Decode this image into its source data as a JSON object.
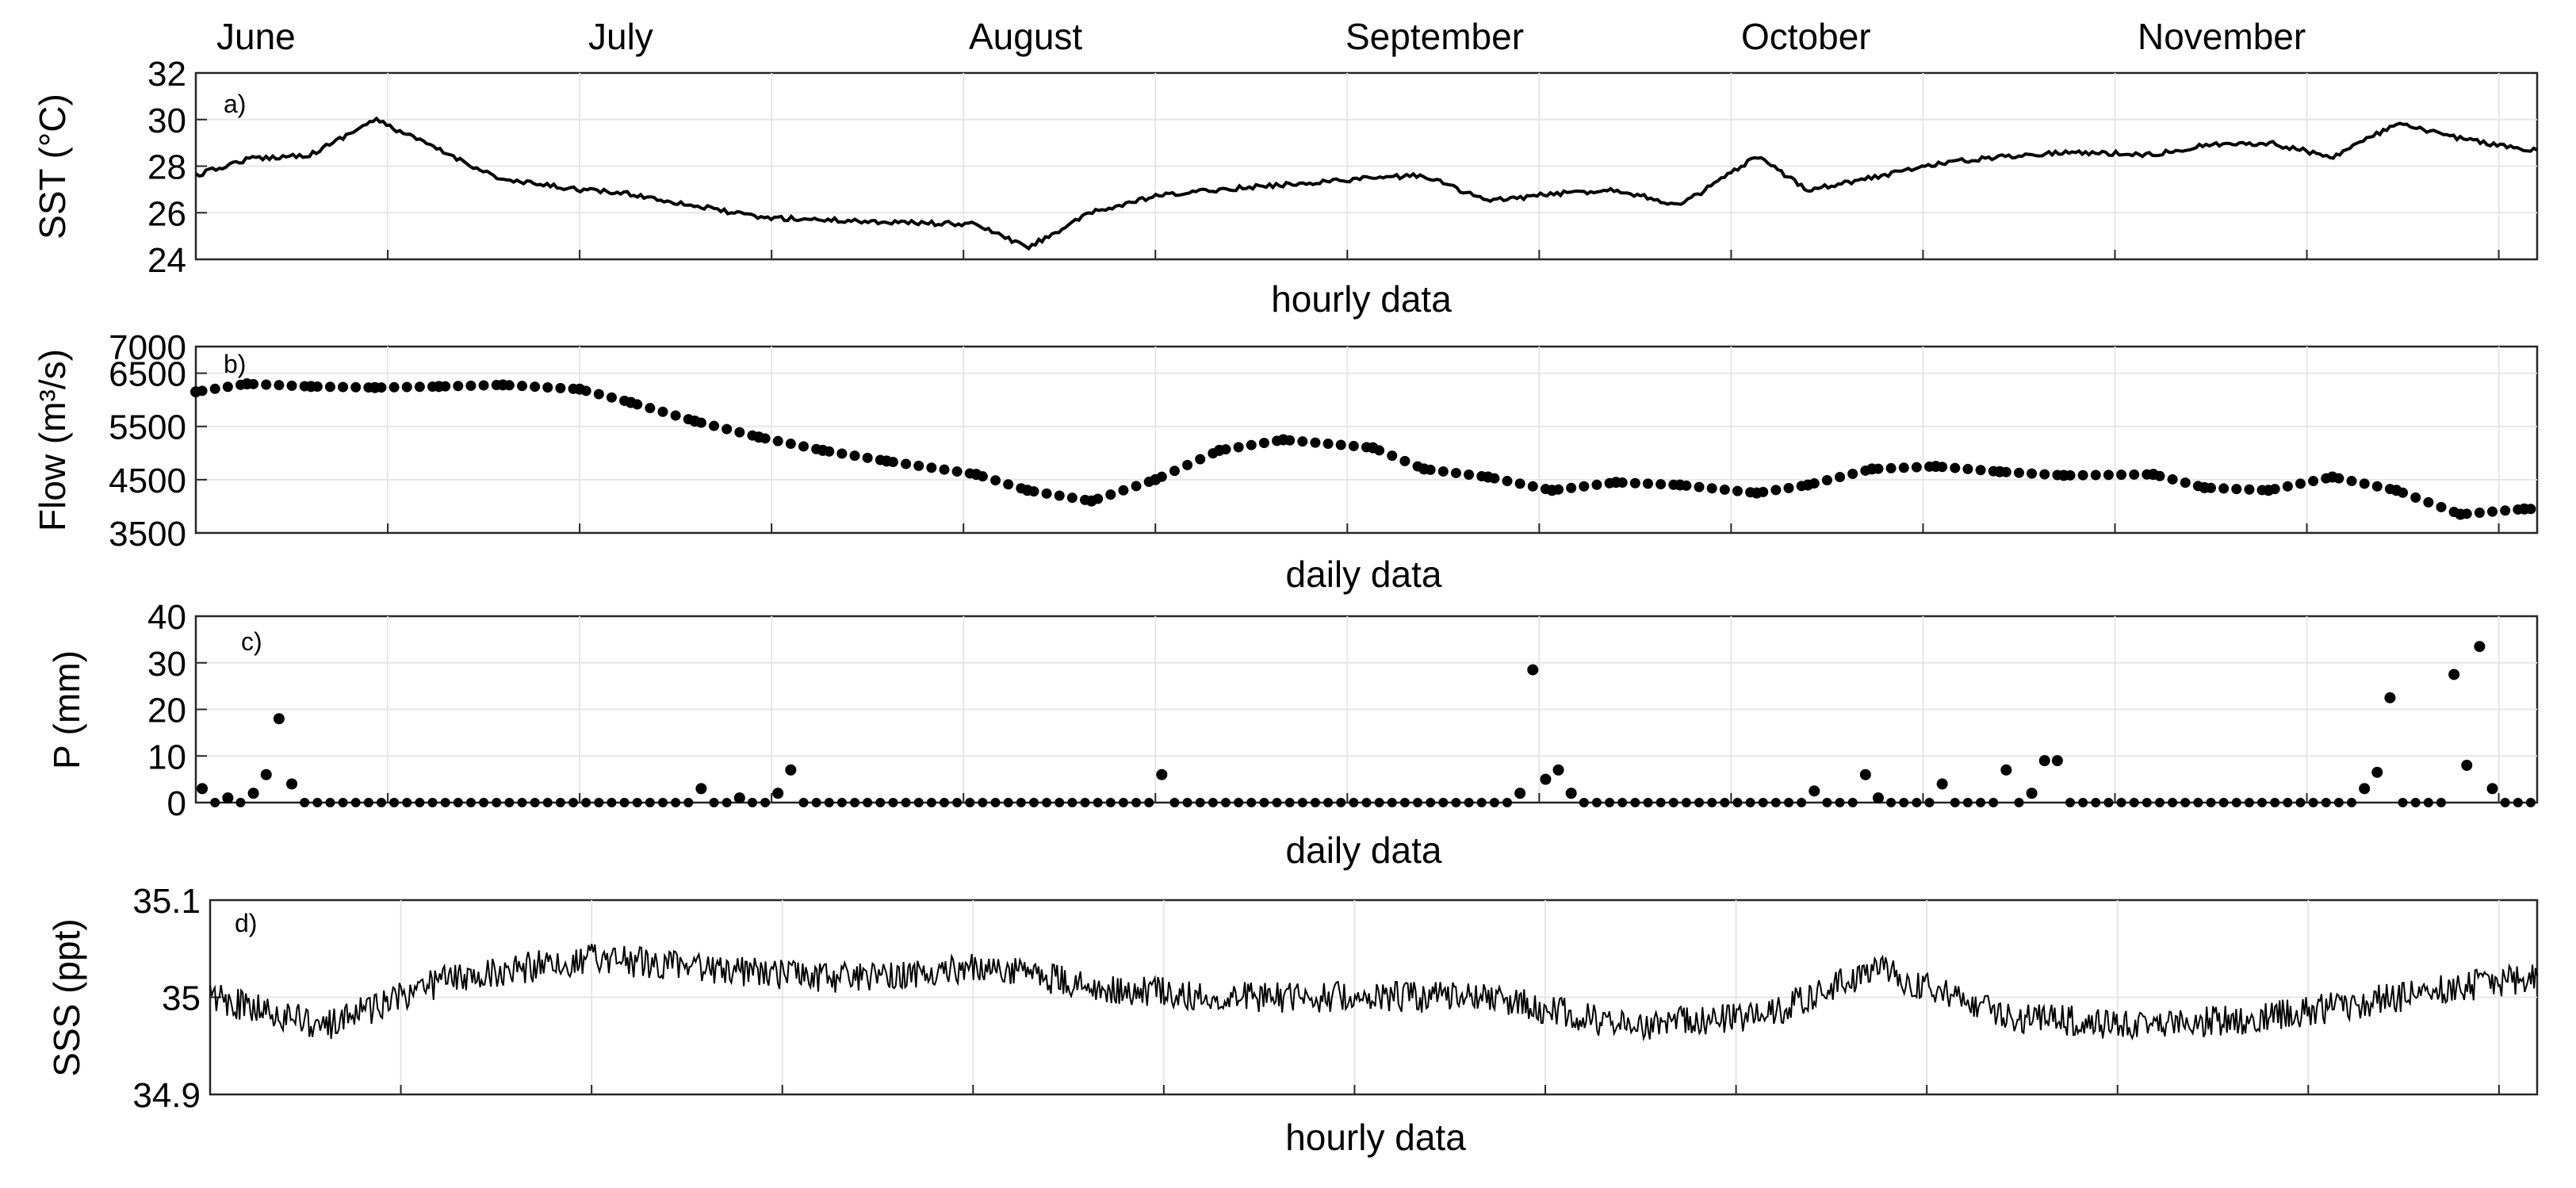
{
  "months": [
    "June",
    "July",
    "August",
    "September",
    "October",
    "November"
  ],
  "colors": {
    "line": "#000000",
    "grid": "#e6e6e6",
    "axes": "#262626",
    "background": "#ffffff"
  },
  "chart_data": [
    {
      "type": "line",
      "panel_label": "a)",
      "ylabel": "SST (°C)",
      "xlabel": "hourly data",
      "ylim": [
        24,
        32
      ],
      "yticks": [
        "32",
        "30",
        "28",
        "26",
        "24"
      ],
      "grid": true,
      "x": [
        "Jun 1",
        "Jun 5",
        "Jun 10",
        "Jun 15",
        "Jun 20",
        "Jun 25",
        "Jul 1",
        "Jul 5",
        "Jul 10",
        "Jul 15",
        "Jul 20",
        "Jul 25",
        "Aug 1",
        "Aug 5",
        "Aug 10",
        "Aug 15",
        "Aug 20",
        "Aug 25",
        "Sep 1",
        "Sep 5",
        "Sep 10",
        "Sep 15",
        "Sep 20",
        "Sep 25",
        "Oct 1",
        "Oct 5",
        "Oct 10",
        "Oct 15",
        "Oct 20",
        "Oct 25",
        "Nov 1",
        "Nov 5",
        "Nov 10",
        "Nov 15",
        "Nov 20",
        "Nov 25",
        "Nov 30"
      ],
      "values": [
        27.6,
        28.3,
        28.5,
        30.0,
        28.7,
        27.4,
        27.0,
        26.8,
        26.3,
        25.8,
        25.7,
        25.6,
        25.5,
        24.5,
        26.0,
        26.7,
        27.0,
        27.2,
        27.5,
        27.6,
        26.5,
        26.8,
        27.0,
        26.3,
        28.4,
        27.0,
        27.5,
        28.1,
        28.4,
        28.6,
        28.5,
        28.9,
        29.0,
        28.4,
        29.8,
        29.2,
        28.7
      ]
    },
    {
      "type": "scatter",
      "panel_label": "b)",
      "ylabel": "Flow (m³/s)",
      "xlabel": "daily data",
      "ylim": [
        3500,
        7000
      ],
      "yticks": [
        "7000",
        "6500",
        "5500",
        "4500",
        "3500"
      ],
      "grid": true,
      "x": [
        "Jun 1",
        "Jun 5",
        "Jun 10",
        "Jun 15",
        "Jun 20",
        "Jun 25",
        "Jul 1",
        "Jul 5",
        "Jul 10",
        "Jul 15",
        "Jul 20",
        "Jul 25",
        "Aug 1",
        "Aug 5",
        "Aug 10",
        "Aug 15",
        "Aug 20",
        "Aug 25",
        "Sep 1",
        "Sep 5",
        "Sep 10",
        "Sep 15",
        "Sep 20",
        "Sep 25",
        "Oct 1",
        "Oct 5",
        "Oct 10",
        "Oct 15",
        "Oct 20",
        "Oct 25",
        "Nov 1",
        "Nov 5",
        "Nov 10",
        "Nov 15",
        "Nov 20",
        "Nov 25",
        "Nov 30"
      ],
      "values": [
        6150,
        6300,
        6250,
        6230,
        6250,
        6280,
        6200,
        5950,
        5600,
        5300,
        5050,
        4850,
        4600,
        4300,
        4100,
        4500,
        5050,
        5250,
        5100,
        4700,
        4550,
        4300,
        4450,
        4400,
        4250,
        4400,
        4700,
        4750,
        4650,
        4580,
        4600,
        4350,
        4300,
        4550,
        4300,
        3850,
        3950
      ]
    },
    {
      "type": "scatter",
      "panel_label": "c)",
      "ylabel": "P (mm)",
      "xlabel": "daily data",
      "ylim": [
        0,
        40
      ],
      "yticks": [
        "40",
        "30",
        "20",
        "10",
        "0"
      ],
      "grid": true,
      "x": [
        "Jun 1",
        "Jun 3",
        "Jun 5",
        "Jun 6",
        "Jun 7",
        "Jun 8",
        "Jul 10",
        "Jul 13",
        "Jul 16",
        "Jul 17",
        "Aug 15",
        "Sep 12",
        "Sep 13",
        "Sep 14",
        "Sep 15",
        "Sep 16",
        "Oct 5",
        "Oct 9",
        "Oct 10",
        "Oct 15",
        "Oct 20",
        "Oct 22",
        "Oct 23",
        "Oct 24",
        "Nov 17",
        "Nov 18",
        "Nov 19",
        "Nov 24",
        "Nov 25",
        "Nov 26",
        "Nov 27"
      ],
      "values": [
        3,
        1,
        2,
        6,
        18,
        4,
        3,
        1,
        2,
        7,
        6,
        2,
        28.5,
        5,
        7,
        2,
        2.5,
        6,
        1,
        4,
        7,
        2,
        9,
        9,
        3,
        6.5,
        22.5,
        27.5,
        8,
        33.5,
        3
      ]
    },
    {
      "type": "line",
      "panel_label": "d)",
      "ylabel": "SSS (ppt)",
      "xlabel": "hourly data",
      "ylim": [
        34.9,
        35.1
      ],
      "yticks": [
        "35.1",
        "35",
        "34.9"
      ],
      "grid": true,
      "x": [
        "Jun 1",
        "Jun 10",
        "Jun 20",
        "Jul 1",
        "Jul 10",
        "Jul 20",
        "Aug 1",
        "Aug 10",
        "Aug 20",
        "Sep 1",
        "Sep 10",
        "Sep 20",
        "Oct 1",
        "Oct 10",
        "Oct 20",
        "Nov 1",
        "Nov 10",
        "Nov 20",
        "Nov 30"
      ],
      "values": [
        35.0,
        34.97,
        35.02,
        35.04,
        35.03,
        35.02,
        35.03,
        35.01,
        35.0,
        35.0,
        35.0,
        34.97,
        34.98,
        35.03,
        34.98,
        34.97,
        34.98,
        35.0,
        35.02
      ]
    }
  ]
}
